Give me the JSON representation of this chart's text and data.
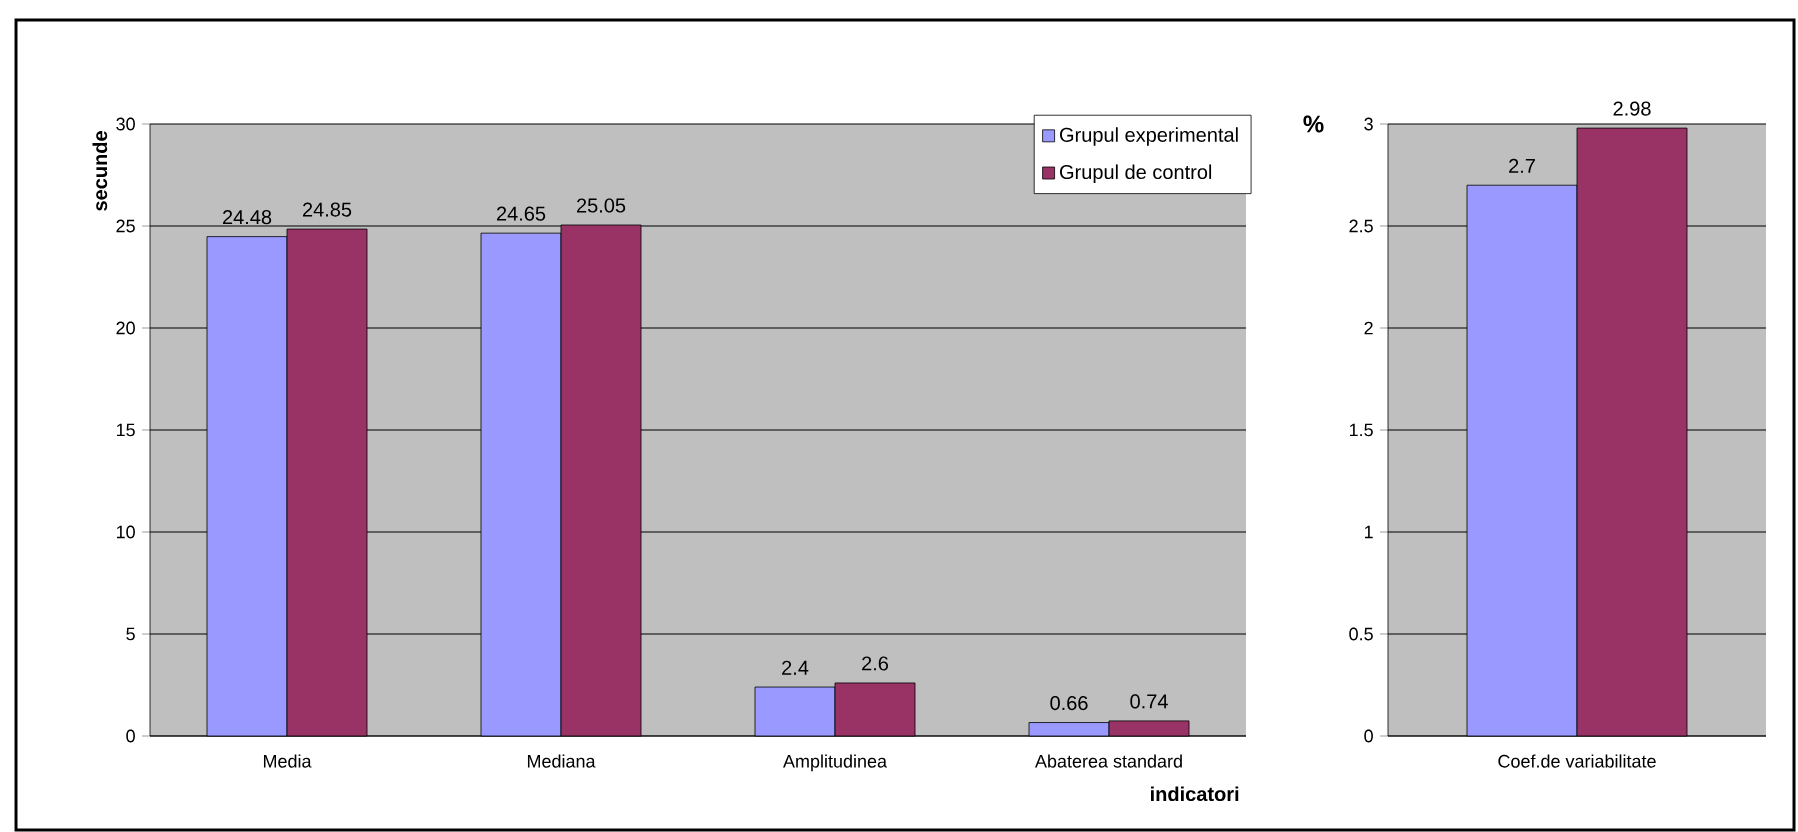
{
  "chart_data": [
    {
      "type": "bar",
      "categories": [
        "Media",
        "Mediana",
        "Amplitudinea",
        "Abaterea standard"
      ],
      "xlabel": "indicatori",
      "ylabel": "secunde",
      "series": [
        {
          "name": "Grupul  experimental",
          "color": "#9999ff",
          "values": [
            24.48,
            24.65,
            2.4,
            0.66
          ]
        },
        {
          "name": "Grupul de control",
          "color": "#993366",
          "values": [
            24.85,
            25.05,
            2.6,
            0.74
          ]
        }
      ],
      "ylim": [
        0,
        30
      ],
      "yticks": [
        0,
        5,
        10,
        15,
        20,
        25,
        30
      ],
      "grid": "y",
      "legend": "top right",
      "data_labels": true
    },
    {
      "type": "bar",
      "categories": [
        "Coef.de variabilitate"
      ],
      "ylabel": "%",
      "series": [
        {
          "color": "#9999ff",
          "values": [
            2.7
          ]
        },
        {
          "color": "#993366",
          "values": [
            2.98
          ]
        }
      ],
      "ylim": [
        0,
        3
      ],
      "yticks": [
        0,
        0.5,
        1,
        1.5,
        2,
        2.5,
        3
      ],
      "grid": "y",
      "data_labels": true
    }
  ]
}
